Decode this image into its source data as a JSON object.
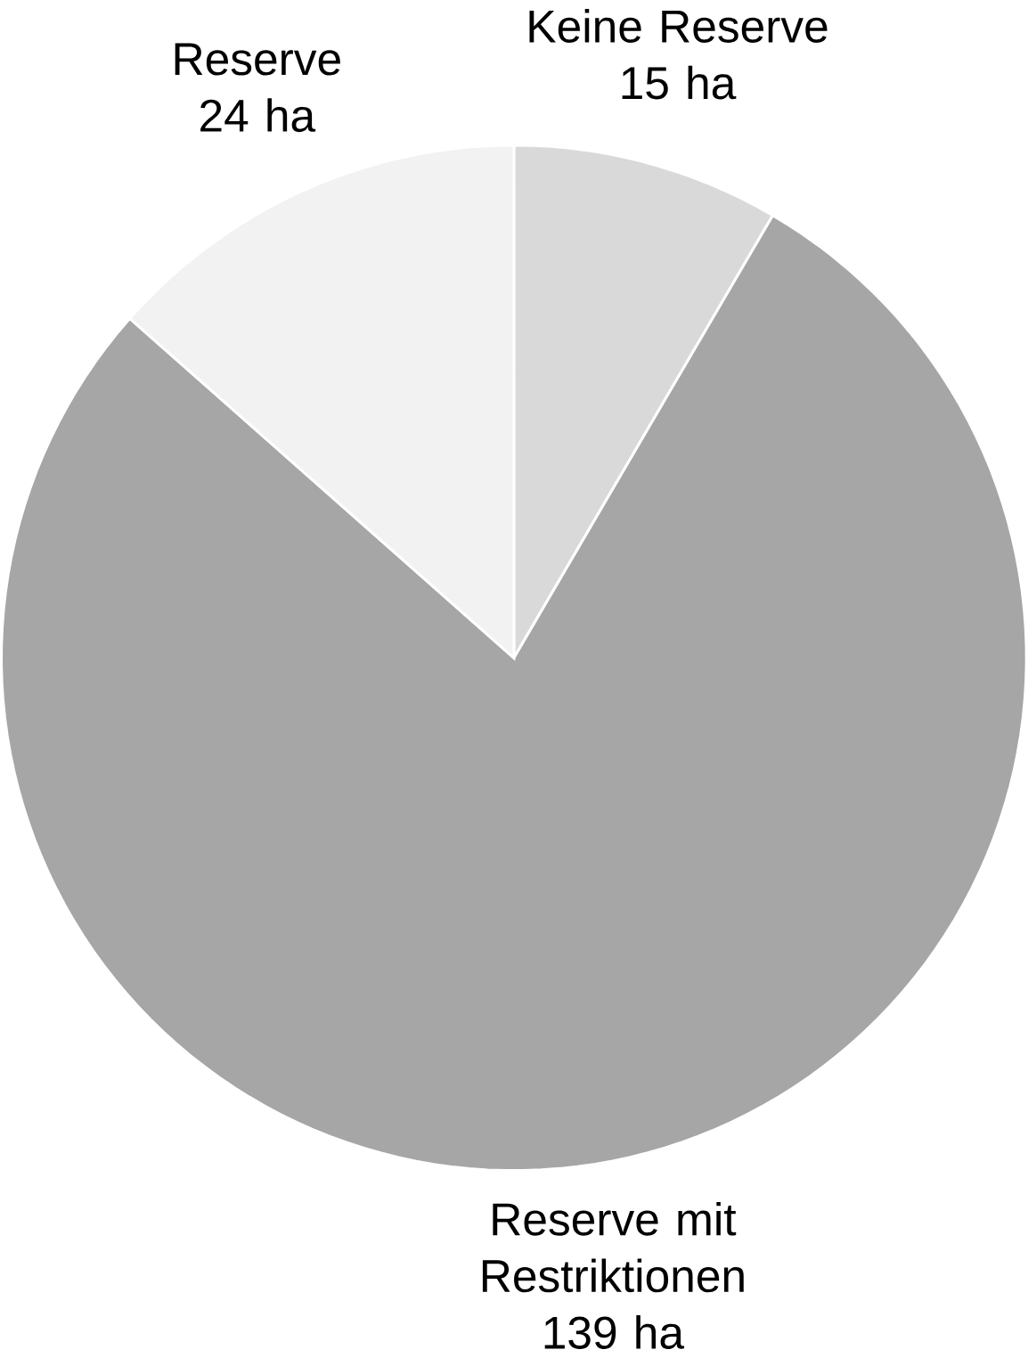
{
  "chart_data": {
    "type": "pie",
    "categories": [
      "Keine Reserve",
      "Reserve mit Restriktionen",
      "Reserve"
    ],
    "values": [
      15,
      139,
      24
    ],
    "value_labels": [
      "15 ha",
      "139 ha",
      "24 ha"
    ],
    "colors": [
      "#d9d9d9",
      "#a6a6a6",
      "#f2f2f2"
    ]
  }
}
